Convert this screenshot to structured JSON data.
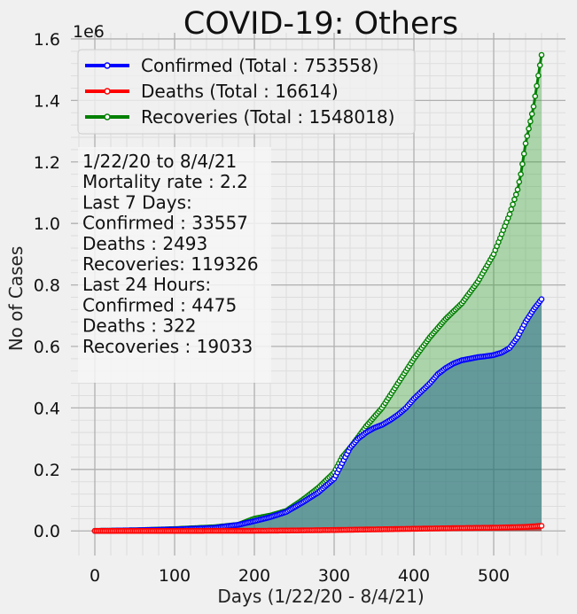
{
  "chart_data": {
    "type": "line",
    "title": "COVID-19: Others",
    "xlabel": "Days (1/22/20 - 8/4/21)",
    "ylabel": "No of Cases",
    "y_offset_label": "1e6",
    "xlim": [
      -30,
      590
    ],
    "ylim": [
      -80000,
      1620000
    ],
    "x_ticks": [
      0,
      100,
      200,
      300,
      400,
      500
    ],
    "x_tick_labels": [
      "0",
      "100",
      "200",
      "300",
      "400",
      "500"
    ],
    "y_ticks": [
      0,
      200000,
      400000,
      600000,
      800000,
      1000000,
      1200000,
      1400000,
      1600000
    ],
    "y_tick_labels": [
      "0.0",
      "0.2",
      "0.4",
      "0.6",
      "0.8",
      "1.0",
      "1.2",
      "1.4",
      "1.6"
    ],
    "grid": true,
    "legend_position": "top-left",
    "series": [
      {
        "name": "Confirmed (Total : 753558)",
        "color": "#0000ff",
        "fill": "#1f5f8b",
        "x": [
          0,
          50,
          100,
          150,
          180,
          200,
          220,
          240,
          260,
          280,
          300,
          310,
          320,
          330,
          340,
          350,
          360,
          370,
          380,
          390,
          400,
          410,
          420,
          430,
          440,
          450,
          460,
          470,
          480,
          490,
          500,
          510,
          520,
          530,
          540,
          550,
          560
        ],
        "values": [
          0,
          2000,
          5000,
          10000,
          20000,
          32000,
          45000,
          62000,
          92000,
          125000,
          170000,
          220000,
          270000,
          300000,
          320000,
          335000,
          345000,
          360000,
          378000,
          400000,
          430000,
          455000,
          480000,
          510000,
          530000,
          545000,
          555000,
          560000,
          565000,
          568000,
          572000,
          580000,
          595000,
          630000,
          680000,
          720000,
          753558
        ]
      },
      {
        "name": "Deaths (Total : 16614)",
        "color": "#ff0000",
        "fill": "#ff0000",
        "x": [
          0,
          100,
          200,
          250,
          300,
          350,
          400,
          450,
          500,
          540,
          560
        ],
        "values": [
          0,
          100,
          500,
          1500,
          3000,
          5000,
          7000,
          9000,
          10500,
          13000,
          16614
        ]
      },
      {
        "name": "Recoveries (Total : 1548018)",
        "color": "#008000",
        "fill": "#2ca02c",
        "x": [
          0,
          50,
          100,
          150,
          180,
          190,
          200,
          210,
          220,
          240,
          260,
          280,
          300,
          310,
          320,
          340,
          360,
          380,
          400,
          420,
          440,
          460,
          480,
          500,
          520,
          530,
          534,
          540,
          550,
          560
        ],
        "values": [
          0,
          2000,
          6000,
          12000,
          20000,
          30000,
          40000,
          45000,
          50000,
          65000,
          100000,
          140000,
          190000,
          240000,
          270000,
          340000,
          400000,
          480000,
          560000,
          630000,
          690000,
          740000,
          810000,
          900000,
          1030000,
          1110000,
          1160000,
          1260000,
          1380000,
          1548018
        ]
      }
    ],
    "annotation": [
      "1/22/20 to 8/4/21",
      "Mortality rate : 2.2",
      "Last 7 Days:",
      "Confirmed : 33557",
      "Deaths : 2493",
      "Recoveries: 119326",
      "Last 24 Hours:",
      "Confirmed : 4475",
      "Deaths : 322",
      "Recoveries : 19033"
    ]
  }
}
